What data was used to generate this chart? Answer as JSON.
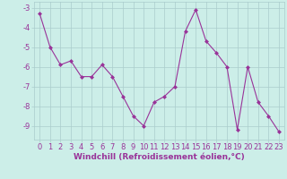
{
  "x": [
    0,
    1,
    2,
    3,
    4,
    5,
    6,
    7,
    8,
    9,
    10,
    11,
    12,
    13,
    14,
    15,
    16,
    17,
    18,
    19,
    20,
    21,
    22,
    23
  ],
  "y": [
    -3.3,
    -5.0,
    -5.9,
    -5.7,
    -6.5,
    -6.5,
    -5.9,
    -6.5,
    -7.5,
    -8.5,
    -9.0,
    -7.8,
    -7.5,
    -7.0,
    -4.2,
    -3.1,
    -4.7,
    -5.3,
    -6.0,
    -9.2,
    -6.0,
    -7.8,
    -8.5,
    -9.3
  ],
  "line_color": "#993399",
  "marker": "D",
  "marker_size": 2,
  "bg_color": "#cceee8",
  "grid_color": "#aacccc",
  "xlabel": "Windchill (Refroidissement éolien,°C)",
  "xlabel_color": "#993399",
  "xlabel_fontsize": 6.5,
  "tick_label_color": "#993399",
  "tick_fontsize": 6,
  "yticks": [
    -9,
    -8,
    -7,
    -6,
    -5,
    -4,
    -3
  ],
  "ylim": [
    -9.7,
    -2.7
  ],
  "xlim": [
    -0.5,
    23.5
  ]
}
